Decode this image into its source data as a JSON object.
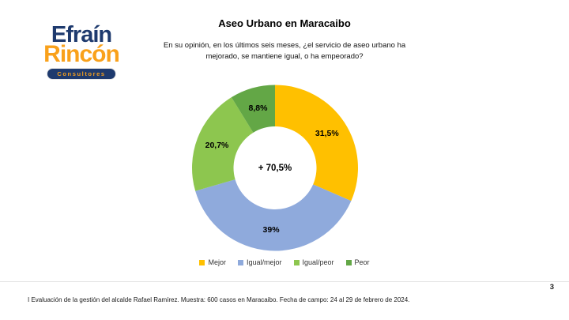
{
  "logo": {
    "line1": "Efraín",
    "line2": "Rincón",
    "badge": "Consultores",
    "navy": "#1E3A6E",
    "orange": "#F9A11B"
  },
  "header": {
    "title": "Aseo Urbano en Maracaibo",
    "question_line1": "En su opinión, en los últimos seis meses, ¿el servicio de aseo urbano ha",
    "question_line2": "mejorado, se mantiene igual, o ha empeorado?"
  },
  "chart_data": {
    "type": "pie",
    "subtype": "donut",
    "title": "Aseo Urbano en Maracaibo",
    "categories": [
      "Mejor",
      "Igual/mejor",
      "Igual/peor",
      "Peor"
    ],
    "values": [
      31.5,
      39,
      20.7,
      8.8
    ],
    "value_labels": [
      "31,5%",
      "39%",
      "20,7%",
      "8,8%"
    ],
    "colors": [
      "#FFC000",
      "#8FAADC",
      "#8DC64F",
      "#63A746"
    ],
    "center_label": "+ 70,5%",
    "start_angle_deg": 0,
    "direction": "clockwise",
    "inner_radius_ratio": 0.5,
    "legend_position": "bottom"
  },
  "footer": {
    "note": "I Evaluación de la gestión del alcalde Rafael Ramírez. Muestra: 600 casos en Maracaibo. Fecha de campo: 24 al 29 de febrero de 2024.",
    "page_number": "3"
  }
}
